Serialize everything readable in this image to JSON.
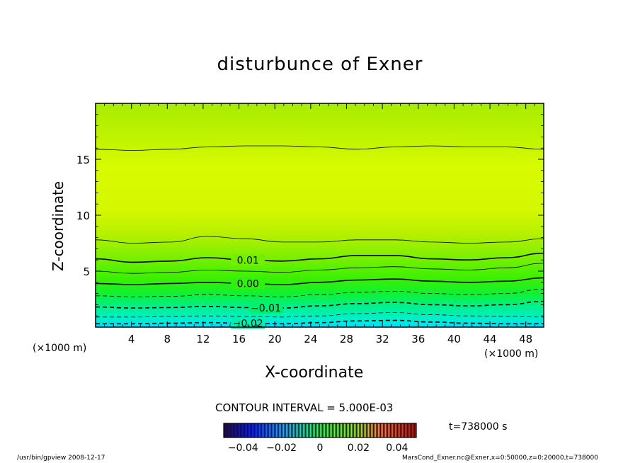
{
  "chart_data": {
    "type": "contour",
    "title": "disturbunce of Exner",
    "xlabel": "X-coordinate",
    "ylabel": "Z-coordinate",
    "x_unit": "(×1000 m)",
    "y_unit": "(×1000 m)",
    "xlim": [
      0,
      50
    ],
    "ylim": [
      0,
      20
    ],
    "x_ticks": [
      4,
      8,
      12,
      16,
      20,
      24,
      28,
      32,
      36,
      40,
      44,
      48
    ],
    "y_ticks": [
      5,
      10,
      15
    ],
    "contour_interval_label": "CONTOUR INTERVAL = 5.000E-03",
    "time_label": "t=738000 s",
    "contours": [
      {
        "level": -0.02,
        "label": "−0.02",
        "dashed": true,
        "bold": true,
        "z": [
          0.3,
          0.3,
          0.35,
          0.4,
          0.35,
          0.3,
          0.4,
          0.55,
          0.6,
          0.45,
          0.35,
          0.3,
          0.3
        ]
      },
      {
        "level": -0.015,
        "label": "",
        "dashed": true,
        "bold": false,
        "z": [
          0.9,
          0.9,
          0.95,
          1.0,
          0.95,
          0.9,
          1.0,
          1.2,
          1.3,
          1.1,
          1.0,
          0.95,
          0.9
        ]
      },
      {
        "level": -0.01,
        "label": "−0.01",
        "dashed": true,
        "bold": true,
        "z": [
          1.8,
          1.7,
          1.75,
          1.85,
          1.75,
          1.7,
          1.9,
          2.1,
          2.2,
          2.0,
          1.9,
          2.0,
          2.3
        ]
      },
      {
        "level": -0.005,
        "label": "",
        "dashed": true,
        "bold": false,
        "z": [
          2.8,
          2.7,
          2.75,
          2.9,
          2.8,
          2.7,
          2.9,
          3.1,
          3.2,
          3.0,
          2.9,
          3.0,
          3.4
        ]
      },
      {
        "level": 0.0,
        "label": "0.00",
        "dashed": false,
        "bold": true,
        "z": [
          3.9,
          3.8,
          3.9,
          4.0,
          3.9,
          3.8,
          4.0,
          4.2,
          4.3,
          4.1,
          4.0,
          4.1,
          4.4
        ]
      },
      {
        "level": 0.005,
        "label": "",
        "dashed": false,
        "bold": false,
        "z": [
          5.0,
          4.8,
          4.9,
          5.1,
          5.0,
          4.9,
          5.1,
          5.3,
          5.4,
          5.2,
          5.1,
          5.3,
          5.7
        ]
      },
      {
        "level": 0.01,
        "label": "0.01",
        "dashed": false,
        "bold": true,
        "z": [
          6.1,
          5.8,
          5.9,
          6.2,
          6.0,
          5.9,
          6.1,
          6.4,
          6.4,
          6.1,
          6.0,
          6.2,
          6.6
        ]
      },
      {
        "level": 0.015,
        "label": "",
        "dashed": false,
        "bold": false,
        "z": [
          7.8,
          7.5,
          7.6,
          8.1,
          7.9,
          7.6,
          7.6,
          7.8,
          7.8,
          7.6,
          7.5,
          7.6,
          7.9
        ]
      },
      {
        "level": 0.015,
        "label": "",
        "dashed": false,
        "bold": false,
        "z": [
          15.9,
          15.8,
          15.9,
          16.1,
          16.2,
          16.2,
          16.1,
          15.9,
          16.1,
          16.2,
          16.1,
          16.1,
          15.9
        ]
      }
    ],
    "colorbar": {
      "ticks": [
        "−0.04",
        "−0.02",
        "0",
        "0.02",
        "0.04"
      ],
      "tick_values": [
        -0.04,
        -0.02,
        0.0,
        0.02,
        0.04
      ],
      "range": [
        -0.05,
        0.05
      ]
    }
  },
  "footer": {
    "left": "/usr/bin/gpview   2008-12-17",
    "right": "MarsCond_Exner.nc@Exner,x=0:50000,z=0:20000,t=738000"
  }
}
